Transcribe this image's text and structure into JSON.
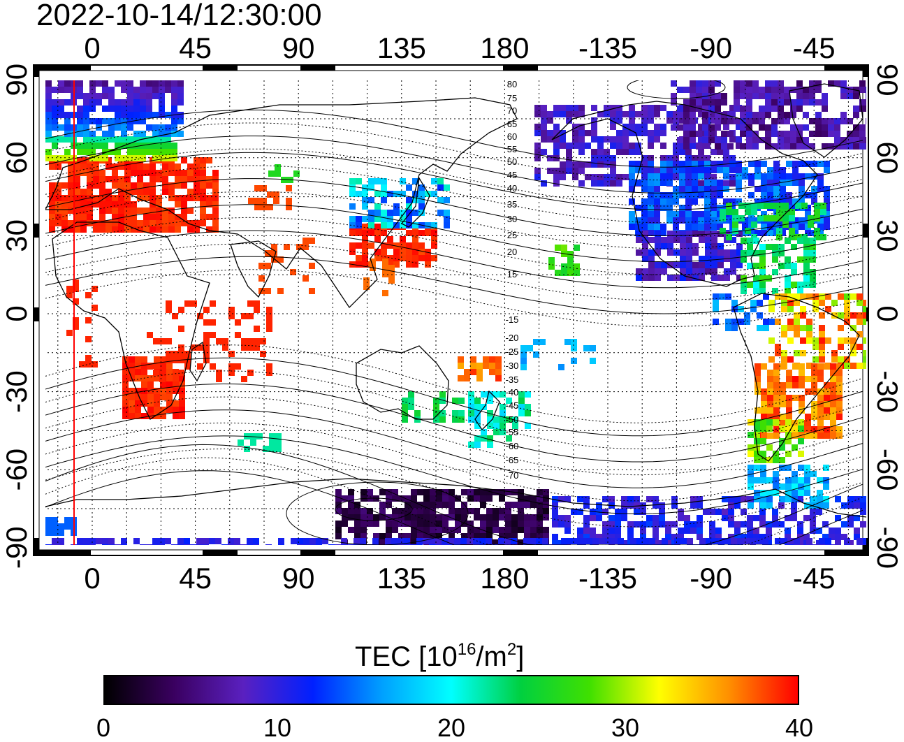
{
  "header": {
    "timestamp": "2022-10-14/12:30:00"
  },
  "map": {
    "lon_ticks_top": [
      "0",
      "45",
      "90",
      "135",
      "180",
      "-135",
      "-90",
      "-45"
    ],
    "lon_ticks_bottom": [
      "0",
      "45",
      "90",
      "135",
      "180",
      "-135",
      "-90",
      "-45"
    ],
    "lat_ticks_left": [
      "90",
      "60",
      "30",
      "0",
      "-30",
      "-60",
      "-90"
    ],
    "lat_ticks_right": [
      "90",
      "60",
      "30",
      "0",
      "-30",
      "-60",
      "-90"
    ],
    "lon_range": [
      -20,
      340
    ],
    "lat_range": [
      -90,
      90
    ],
    "grid": true,
    "magnetic_latitude_labels": [
      "80",
      "75",
      "70",
      "65",
      "60",
      "55",
      "50",
      "45",
      "40",
      "35",
      "30",
      "25",
      "20",
      "15",
      "-15",
      "-20",
      "-25",
      "-30",
      "-35",
      "-40",
      "-45",
      "-50",
      "-55",
      "-60",
      "-65",
      "-70"
    ],
    "meridian_marker_lon": -9,
    "meridian_marker_color": "#ff0000"
  },
  "colorbar": {
    "title_prefix": "TEC  [10",
    "title_exp1": "16",
    "title_mid": "/m",
    "title_exp2": "2",
    "title_suffix": "]",
    "ticks": [
      "0",
      "10",
      "20",
      "30",
      "40"
    ],
    "range": [
      0,
      40
    ],
    "colormap": [
      "#000000",
      "#3a0060",
      "#5a20c0",
      "#0020ff",
      "#00a0ff",
      "#00ffff",
      "#00d040",
      "#40e000",
      "#ffff00",
      "#ff9000",
      "#ff0000"
    ]
  }
}
